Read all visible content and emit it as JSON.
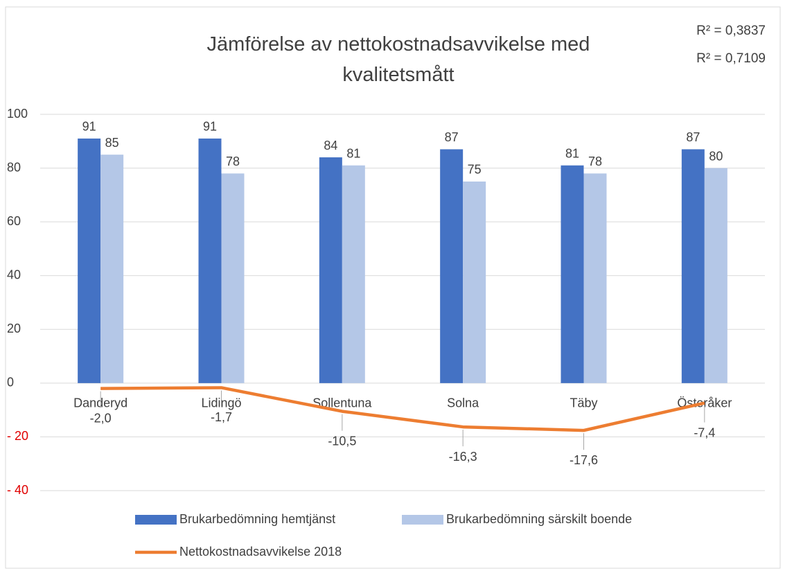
{
  "chart_data": {
    "type": "bar",
    "title": "Jämförelse av nettokostnadsavvikelse med kvalitetsmått",
    "annotations": [
      "R² = 0,3837",
      "R² = 0,7109"
    ],
    "categories": [
      "Danderyd",
      "Lidingö",
      "Sollentuna",
      "Solna",
      "Täby",
      "Österåker"
    ],
    "series": [
      {
        "name": "Brukarbedömning hemtjänst",
        "color": "#4472c4",
        "type": "bar",
        "values": [
          91,
          91,
          84,
          87,
          81,
          87
        ]
      },
      {
        "name": "Brukarbedömning särskilt boende",
        "color": "#b4c7e7",
        "type": "bar",
        "values": [
          85,
          78,
          81,
          75,
          78,
          80
        ]
      },
      {
        "name": "Nettokostnadsavvikelse 2018",
        "color": "#ed7d31",
        "type": "line",
        "values": [
          -2.0,
          -1.7,
          -10.5,
          -16.3,
          -17.6,
          -7.4
        ],
        "value_labels": [
          "-2,0",
          "-1,7",
          "-10,5",
          "-16,3",
          "-17,6",
          "-7,4"
        ]
      }
    ],
    "ylim": [
      -40,
      100
    ],
    "yticks": [
      {
        "value": -40,
        "label": "- 40"
      },
      {
        "value": -20,
        "label": "- 20"
      },
      0,
      20,
      40,
      60,
      80,
      100
    ],
    "grid": true,
    "legend": "bottom"
  }
}
